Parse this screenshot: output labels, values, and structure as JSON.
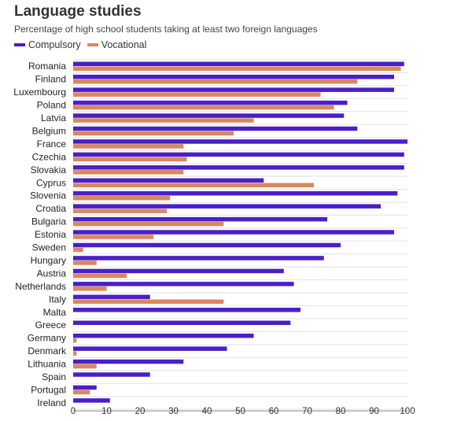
{
  "header": {
    "title": "Language studies",
    "subtitle": "Percentage of high school students taking at least two foreign languages"
  },
  "legend": [
    {
      "label": "Compulsory",
      "color": "#4a1fc8"
    },
    {
      "label": "Vocational",
      "color": "#d98860"
    }
  ],
  "chart_data": {
    "type": "bar",
    "orientation": "horizontal",
    "title": "Language studies",
    "subtitle": "Percentage of high school students taking at least two foreign languages",
    "categories": [
      "Romania",
      "Finland",
      "Luxembourg",
      "Poland",
      "Latvia",
      "Belgium",
      "France",
      "Czechia",
      "Slovakia",
      "Cyprus",
      "Slovenia",
      "Croatia",
      "Bulgaria",
      "Estonia",
      "Sweden",
      "Hungary",
      "Austria",
      "Netherlands",
      "Italy",
      "Malta",
      "Greece",
      "Germany",
      "Denmark",
      "Lithuania",
      "Spain",
      "Portugal",
      "Ireland"
    ],
    "series": [
      {
        "name": "Compulsory",
        "color": "#4a1fc8",
        "values": [
          99,
          96,
          96,
          82,
          81,
          85,
          100,
          99,
          99,
          57,
          97,
          92,
          76,
          96,
          80,
          75,
          63,
          66,
          23,
          68,
          65,
          54,
          46,
          33,
          23,
          7,
          11
        ]
      },
      {
        "name": "Vocational",
        "color": "#d98860",
        "values": [
          98,
          85,
          74,
          78,
          54,
          48,
          33,
          34,
          33,
          72,
          29,
          28,
          45,
          24,
          3,
          7,
          16,
          10,
          45,
          0,
          0,
          1,
          1,
          7,
          0,
          5,
          0
        ]
      }
    ],
    "xlim": [
      0,
      100
    ],
    "xticks": [
      0,
      10,
      20,
      30,
      40,
      50,
      60,
      70,
      80,
      90,
      100
    ],
    "grid": true,
    "legend_position": "top-left"
  }
}
